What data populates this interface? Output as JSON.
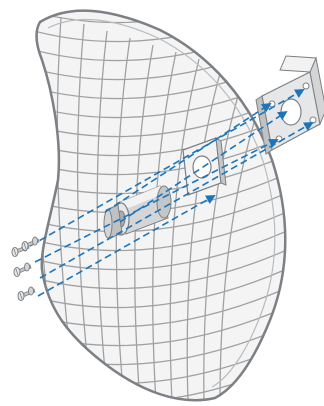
{
  "diagram": {
    "colors": {
      "background": "#ffffff",
      "grid_wire": "#9fa1a3",
      "grid_outline": "#8c8f92",
      "grid_fill": "#f4f4f4",
      "metal_light": "#f2f2f2",
      "metal_mid": "#d4d5d6",
      "metal_dark": "#a9abad",
      "metal_edge": "#7d8084",
      "guide_line": "#1b75bb"
    },
    "parts": [
      {
        "name": "grid-reflector",
        "icon": "parabolic-grid-reflector"
      },
      {
        "name": "feed-horn-tube",
        "icon": "feed-tube"
      },
      {
        "name": "center-plate",
        "icon": "square-plate"
      },
      {
        "name": "rear-mounting-bracket",
        "icon": "mounting-bracket"
      },
      {
        "name": "screws",
        "icon": "screw",
        "count": 4
      }
    ],
    "guide_arrow_count": 6
  }
}
